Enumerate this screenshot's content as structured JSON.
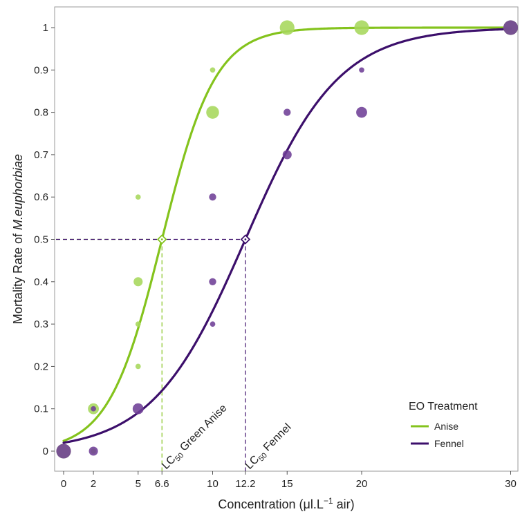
{
  "chart_data": {
    "type": "scatter",
    "xlabel": "Concentration (μl.L",
    "xlabel_sup": "−1",
    "xlabel_suffix": " air)",
    "ylabel": "Mortality Rate of ",
    "ylabel_italic": "M.euphorbiae",
    "xlim": [
      -0.8,
      30.5
    ],
    "ylim": [
      -0.05,
      1.05
    ],
    "x_ticks": [
      0,
      2,
      5,
      6.6,
      10,
      12.2,
      15,
      20,
      30
    ],
    "x_tick_labels": [
      "0",
      "2",
      "5",
      "6.6",
      "10",
      "12.2",
      "15",
      "20",
      "30"
    ],
    "y_ticks": [
      0,
      0.1,
      0.2,
      0.3,
      0.4,
      0.5,
      0.6,
      0.7,
      0.8,
      0.9,
      1
    ],
    "y_tick_labels": [
      "0",
      "0.1",
      "0.2",
      "0.3",
      "0.4",
      "0.5",
      "0.6",
      "0.7",
      "0.8",
      "0.9",
      "1"
    ],
    "grid": false,
    "legend": {
      "title": "EO Treatment",
      "position": "bottom-right"
    },
    "series": [
      {
        "name": "Anise",
        "color": "#84c31d",
        "point_color": "#a6d75b",
        "lc50": 6.6,
        "curve_slope": 0.56,
        "points": [
          {
            "x": 0,
            "y": 0,
            "n": 6
          },
          {
            "x": 2,
            "y": 0,
            "n": 1
          },
          {
            "x": 2,
            "y": 0.1,
            "n": 4
          },
          {
            "x": 5,
            "y": 0.2,
            "n": 1
          },
          {
            "x": 5,
            "y": 0.3,
            "n": 1
          },
          {
            "x": 5,
            "y": 0.4,
            "n": 3
          },
          {
            "x": 5,
            "y": 0.6,
            "n": 1
          },
          {
            "x": 10,
            "y": 0.8,
            "n": 5
          },
          {
            "x": 10,
            "y": 0.9,
            "n": 1
          },
          {
            "x": 15,
            "y": 1,
            "n": 6
          },
          {
            "x": 20,
            "y": 1,
            "n": 6
          },
          {
            "x": 30,
            "y": 1,
            "n": 6
          }
        ]
      },
      {
        "name": "Fennel",
        "color": "#3c0f6b",
        "point_color": "#6e3f96",
        "lc50": 12.2,
        "curve_slope": 0.32,
        "points": [
          {
            "x": 0,
            "y": 0,
            "n": 6
          },
          {
            "x": 2,
            "y": 0,
            "n": 3
          },
          {
            "x": 2,
            "y": 0.1,
            "n": 1
          },
          {
            "x": 5,
            "y": 0.1,
            "n": 4
          },
          {
            "x": 10,
            "y": 0.3,
            "n": 1
          },
          {
            "x": 10,
            "y": 0.4,
            "n": 2
          },
          {
            "x": 10,
            "y": 0.6,
            "n": 2
          },
          {
            "x": 15,
            "y": 0.7,
            "n": 3
          },
          {
            "x": 15,
            "y": 0.8,
            "n": 2
          },
          {
            "x": 20,
            "y": 0.8,
            "n": 4
          },
          {
            "x": 20,
            "y": 0.9,
            "n": 1
          },
          {
            "x": 30,
            "y": 1,
            "n": 6
          }
        ]
      }
    ],
    "annotations": [
      {
        "prefix": "LC",
        "sub": "50",
        "text": " Green Anise",
        "x": 6.6
      },
      {
        "prefix": "LC",
        "sub": "50",
        "text": " Fennel",
        "x": 12.2
      }
    ]
  }
}
